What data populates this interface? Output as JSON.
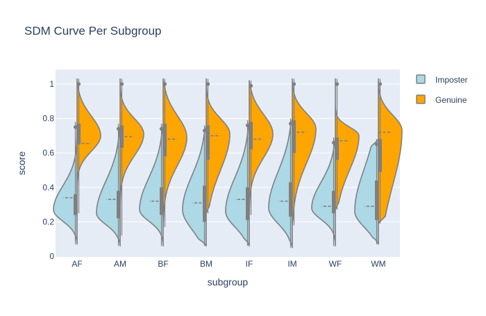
{
  "chart_data": {
    "type": "violin",
    "title": "SDM Curve Per Subgroup",
    "xlabel": "subgroup",
    "ylabel": "score",
    "ylim": [
      0,
      1.05
    ],
    "yticks": [
      0,
      0.2,
      0.4,
      0.6,
      0.8,
      1
    ],
    "ytick_labels": [
      "0",
      "0.2",
      "0.4",
      "0.6",
      "0.8",
      "1"
    ],
    "grid": true,
    "legend_position": "top-right",
    "categories": [
      "AF",
      "AM",
      "BF",
      "BM",
      "IF",
      "IM",
      "WF",
      "WM"
    ],
    "colors": {
      "plot_bg": "#e5ecf6",
      "grid": "#ffffff",
      "text": "#2a3f5f",
      "outline": "#7f7f7f",
      "imposter": "#add8e6",
      "genuine": "#ffa500"
    },
    "series": [
      {
        "name": "Imposter",
        "side": "left",
        "min": [
          0.07,
          0.06,
          0.06,
          0.06,
          0.06,
          0.05,
          0.06,
          0.07
        ],
        "q1": [
          0.24,
          0.22,
          0.24,
          0.2,
          0.21,
          0.23,
          0.25,
          0.21
        ],
        "median": [
          0.34,
          0.33,
          0.32,
          0.31,
          0.33,
          0.32,
          0.29,
          0.29
        ],
        "q3": [
          0.36,
          0.38,
          0.4,
          0.41,
          0.4,
          0.43,
          0.38,
          0.44
        ],
        "peak": [
          0.27,
          0.25,
          0.27,
          0.27,
          0.26,
          0.28,
          0.28,
          0.26
        ],
        "max": [
          0.78,
          0.77,
          0.77,
          0.76,
          0.79,
          0.8,
          0.69,
          0.68
        ]
      },
      {
        "name": "Genuine",
        "side": "right",
        "min": [
          0.25,
          0.12,
          0.17,
          0.25,
          0.24,
          0.18,
          0.27,
          0.19
        ],
        "q1": [
          0.65,
          0.63,
          0.58,
          0.56,
          0.62,
          0.6,
          0.56,
          0.49
        ],
        "median": [
          0.655,
          0.695,
          0.68,
          0.7,
          0.68,
          0.72,
          0.67,
          0.72
        ],
        "q3": [
          0.77,
          0.76,
          0.77,
          0.76,
          0.78,
          0.79,
          0.69,
          0.68
        ],
        "peak": [
          0.7,
          0.71,
          0.69,
          0.71,
          0.71,
          0.74,
          0.7,
          0.73
        ],
        "max": [
          1.03,
          1.03,
          1.03,
          1.03,
          1.02,
          1.03,
          1.03,
          1.03
        ]
      }
    ]
  }
}
